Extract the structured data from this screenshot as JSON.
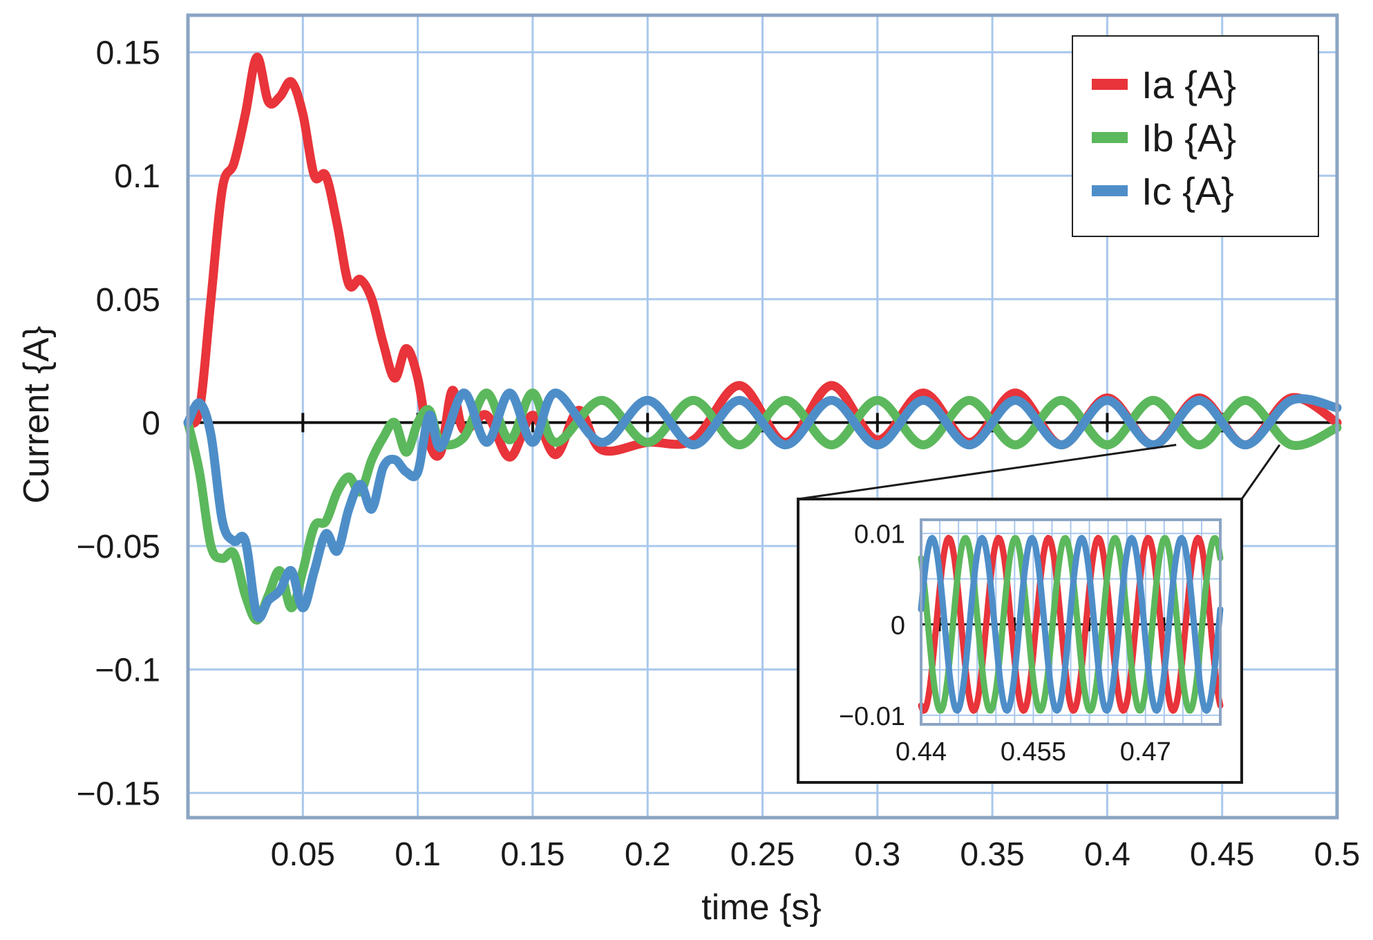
{
  "chart_data": {
    "type": "line",
    "title": "",
    "xlabel": "time {s}",
    "ylabel": "Current {A}",
    "xlim": [
      0,
      0.5
    ],
    "ylim": [
      -0.16,
      0.165
    ],
    "x_ticks": [
      "0.05",
      "0.1",
      "0.15",
      "0.2",
      "0.25",
      "0.3",
      "0.35",
      "0.4",
      "0.45",
      "0.5"
    ],
    "y_ticks": [
      "0.15",
      "0.1",
      "0.05",
      "0",
      "−0.05",
      "−0.1",
      "−0.15"
    ],
    "grid": true,
    "legend_position": "top-right",
    "series": [
      {
        "name": "Ia {A}",
        "color": "#e8343a",
        "x": [
          0,
          0.005,
          0.01,
          0.015,
          0.02,
          0.025,
          0.03,
          0.035,
          0.04,
          0.045,
          0.05,
          0.055,
          0.06,
          0.065,
          0.07,
          0.075,
          0.08,
          0.085,
          0.09,
          0.095,
          0.1,
          0.105,
          0.11,
          0.115,
          0.12,
          0.13,
          0.14,
          0.15,
          0.16,
          0.17,
          0.18,
          0.2,
          0.22,
          0.24,
          0.26,
          0.28,
          0.3,
          0.32,
          0.34,
          0.36,
          0.38,
          0.4,
          0.42,
          0.44,
          0.46,
          0.48,
          0.5
        ],
        "y": [
          0,
          0.005,
          0.05,
          0.095,
          0.105,
          0.125,
          0.148,
          0.13,
          0.132,
          0.138,
          0.125,
          0.1,
          0.1,
          0.08,
          0.056,
          0.058,
          0.05,
          0.032,
          0.018,
          0.03,
          0.018,
          -0.008,
          -0.012,
          0.013,
          -0.003,
          0.003,
          -0.014,
          0.003,
          -0.013,
          0.005,
          -0.011,
          -0.008,
          -0.007,
          0.015,
          -0.008,
          0.015,
          -0.007,
          0.012,
          -0.008,
          0.012,
          -0.009,
          0.01,
          -0.009,
          0.01,
          -0.009,
          0.01,
          0.0
        ]
      },
      {
        "name": "Ib {A}",
        "color": "#5cb85c",
        "x": [
          0,
          0.005,
          0.01,
          0.015,
          0.02,
          0.025,
          0.03,
          0.035,
          0.04,
          0.045,
          0.05,
          0.055,
          0.06,
          0.065,
          0.07,
          0.075,
          0.08,
          0.085,
          0.09,
          0.095,
          0.1,
          0.105,
          0.11,
          0.12,
          0.13,
          0.14,
          0.15,
          0.16,
          0.18,
          0.2,
          0.22,
          0.24,
          0.26,
          0.28,
          0.3,
          0.32,
          0.34,
          0.36,
          0.38,
          0.4,
          0.42,
          0.44,
          0.46,
          0.48,
          0.5
        ],
        "y": [
          0,
          -0.02,
          -0.05,
          -0.055,
          -0.053,
          -0.07,
          -0.08,
          -0.07,
          -0.06,
          -0.075,
          -0.06,
          -0.042,
          -0.04,
          -0.028,
          -0.022,
          -0.028,
          -0.015,
          -0.006,
          0.0,
          -0.012,
          0.0,
          0.005,
          -0.008,
          -0.006,
          0.012,
          -0.007,
          0.012,
          -0.008,
          0.009,
          -0.008,
          0.009,
          -0.009,
          0.009,
          -0.009,
          0.009,
          -0.009,
          0.009,
          -0.009,
          0.009,
          -0.009,
          0.009,
          -0.009,
          0.009,
          -0.009,
          -0.002
        ]
      },
      {
        "name": "Ic {A}",
        "color": "#4e8ec8",
        "x": [
          0,
          0.005,
          0.01,
          0.015,
          0.02,
          0.025,
          0.03,
          0.035,
          0.04,
          0.045,
          0.05,
          0.055,
          0.06,
          0.065,
          0.07,
          0.075,
          0.08,
          0.085,
          0.09,
          0.095,
          0.1,
          0.105,
          0.11,
          0.12,
          0.13,
          0.14,
          0.15,
          0.16,
          0.18,
          0.2,
          0.22,
          0.24,
          0.26,
          0.28,
          0.3,
          0.32,
          0.34,
          0.36,
          0.38,
          0.4,
          0.42,
          0.44,
          0.46,
          0.48,
          0.5
        ],
        "y": [
          0,
          0.008,
          -0.005,
          -0.04,
          -0.048,
          -0.048,
          -0.078,
          -0.072,
          -0.068,
          -0.06,
          -0.075,
          -0.06,
          -0.045,
          -0.052,
          -0.035,
          -0.025,
          -0.035,
          -0.018,
          -0.015,
          -0.02,
          -0.02,
          0.003,
          -0.01,
          0.012,
          -0.008,
          0.012,
          -0.008,
          0.012,
          -0.008,
          0.009,
          -0.009,
          0.009,
          -0.009,
          0.009,
          -0.009,
          0.009,
          -0.009,
          0.009,
          -0.009,
          0.009,
          -0.009,
          0.009,
          -0.009,
          0.009,
          0.006
        ]
      }
    ],
    "inset": {
      "xlim": [
        0.44,
        0.48
      ],
      "ylim": [
        -0.011,
        0.0115
      ],
      "x_ticks": [
        "0.44",
        "0.455",
        "0.47"
      ],
      "y_ticks": [
        "0.01",
        "0",
        "−0.01"
      ],
      "series": [
        {
          "name": "Ia {A}",
          "color": "#e8343a",
          "amplitude": 0.0095,
          "frequency_hz": 150,
          "phase_deg": -110
        },
        {
          "name": "Ib {A}",
          "color": "#5cb85c",
          "amplitude": 0.0095,
          "frequency_hz": 150,
          "phase_deg": 130
        },
        {
          "name": "Ic {A}",
          "color": "#4e8ec8",
          "amplitude": 0.0095,
          "frequency_hz": 150,
          "phase_deg": 10
        }
      ]
    }
  }
}
